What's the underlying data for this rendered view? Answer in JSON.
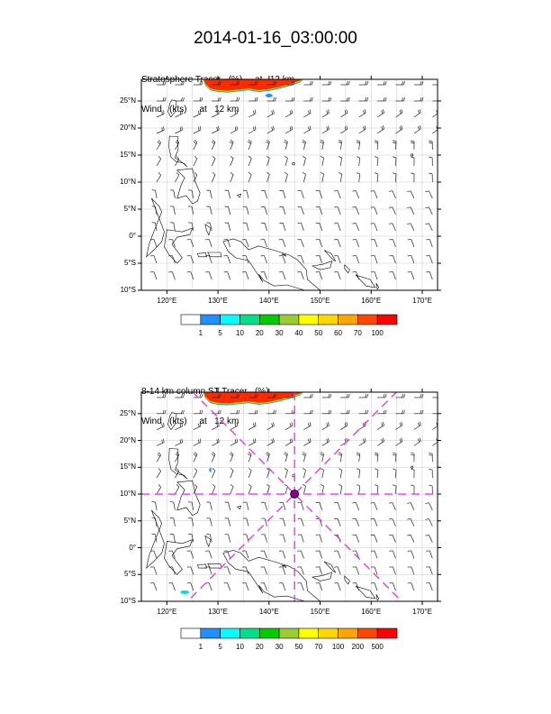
{
  "title": "2014-01-16_03:00:00",
  "panels": [
    {
      "label_lines": [
        "Stratosphere Tracer   (%)     at   12 km",
        "Wind   (kts)     at   12 km"
      ],
      "lat_labels": [
        "25°N",
        "20°N",
        "15°N",
        "10°N",
        "5°N",
        "0°",
        "5°S",
        "10°S"
      ],
      "lon_labels": [
        "120°E",
        "130°E",
        "140°E",
        "150°E",
        "160°E",
        "170°E"
      ],
      "colorbar_labels": [
        "1",
        "5",
        "10",
        "20",
        "30",
        "40",
        "50",
        "60",
        "70",
        "100"
      ],
      "colorbar_colors": [
        "#ffffff",
        "#1e90ff",
        "#00ffff",
        "#00e08a",
        "#00cc00",
        "#9acd32",
        "#ffff00",
        "#ffd700",
        "#ffa500",
        "#ff4500",
        "#ff0000"
      ]
    },
    {
      "label_lines": [
        "8-14 km column ST Tracer   (%)",
        "Wind   (kts)     at   12 km"
      ],
      "lat_labels": [
        "25°N",
        "20°N",
        "15°N",
        "10°N",
        "5°N",
        "0°",
        "5°S",
        "10°S"
      ],
      "lon_labels": [
        "120°E",
        "130°E",
        "140°E",
        "150°E",
        "160°E",
        "170°E"
      ],
      "colorbar_labels": [
        "1",
        "5",
        "10",
        "20",
        "30",
        "50",
        "70",
        "100",
        "200",
        "500"
      ],
      "colorbar_colors": [
        "#ffffff",
        "#1e90ff",
        "#00ffff",
        "#00e08a",
        "#00cc00",
        "#9acd32",
        "#ffff00",
        "#ffd700",
        "#ffa500",
        "#ff4500",
        "#ff0000"
      ]
    }
  ],
  "map_extent": {
    "lon_min": 115,
    "lon_max": 173,
    "lat_min": -10,
    "lat_max": 29
  },
  "storm_center": {
    "lon": 145,
    "lat": 10
  },
  "colors": {
    "tracer_red": "#ff2a00",
    "guide_magenta": "#e040e0",
    "grid": "#c8c8c8"
  }
}
